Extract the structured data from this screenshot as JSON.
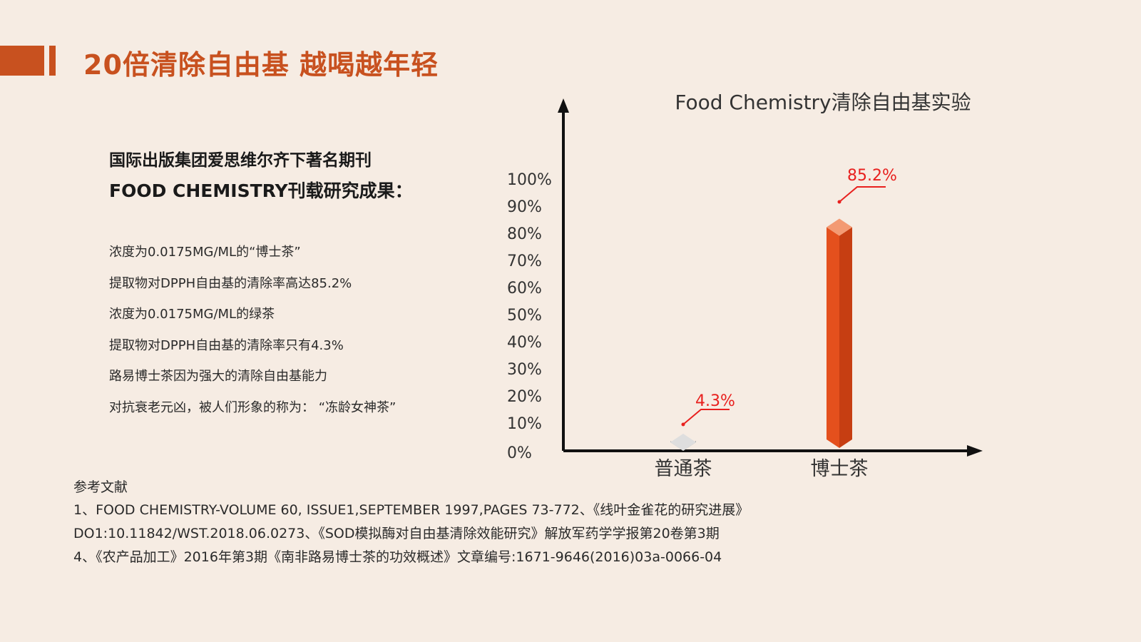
{
  "header": {
    "title": "20倍清除自由基 越喝越年轻",
    "accent_color": "#c8511f"
  },
  "intro": {
    "line1": "国际出版集团爱思维尔齐下著名期刊",
    "line2": "FOOD CHEMISTRY刊载研究成果："
  },
  "body_lines": [
    "浓度为0.0175MG/ML的“博士茶”",
    "提取物对DPPH自由基的清除率高达85.2%",
    "浓度为0.0175MG/ML的绿茶",
    "提取物对DPPH自由基的清除率只有4.3%",
    "路易博士茶因为强大的清除自由基能力",
    "对抗衰老元凶，被人们形象的称为：  “冻龄女神茶”"
  ],
  "references": {
    "heading": "参考文献",
    "lines": [
      "1、FOOD CHEMISTRY-VOLUME 60, ISSUE1,SEPTEMBER 1997,PAGES 73-772、《线叶金雀花的研究进展》",
      "DO1:10.11842/WST.2018.06.0273、《SOD模拟酶对自由基清除效能研究》解放军药学学报第20卷第3期",
      "4、《农产品加工》2016年第3期《南非路易博士茶的功效概述》文章编号:1671-9646(2016)03a-0066-04"
    ]
  },
  "chart_data": {
    "type": "bar",
    "title": "Food Chemistry清除自由基实验",
    "categories": [
      "普通茶",
      "博士茶"
    ],
    "values": [
      4.3,
      85.2
    ],
    "value_labels": [
      "4.3%",
      "85.2%"
    ],
    "y_ticks": [
      "0%",
      "10%",
      "20%",
      "30%",
      "40%",
      "50%",
      "60%",
      "70%",
      "80%",
      "90%",
      "100%"
    ],
    "ylim": [
      0,
      100
    ],
    "grid": false,
    "colors": {
      "bar_low": "#c9c9c9",
      "bar_high": "#e4501d",
      "annotation": "#e8201e",
      "axis": "#111111"
    }
  }
}
